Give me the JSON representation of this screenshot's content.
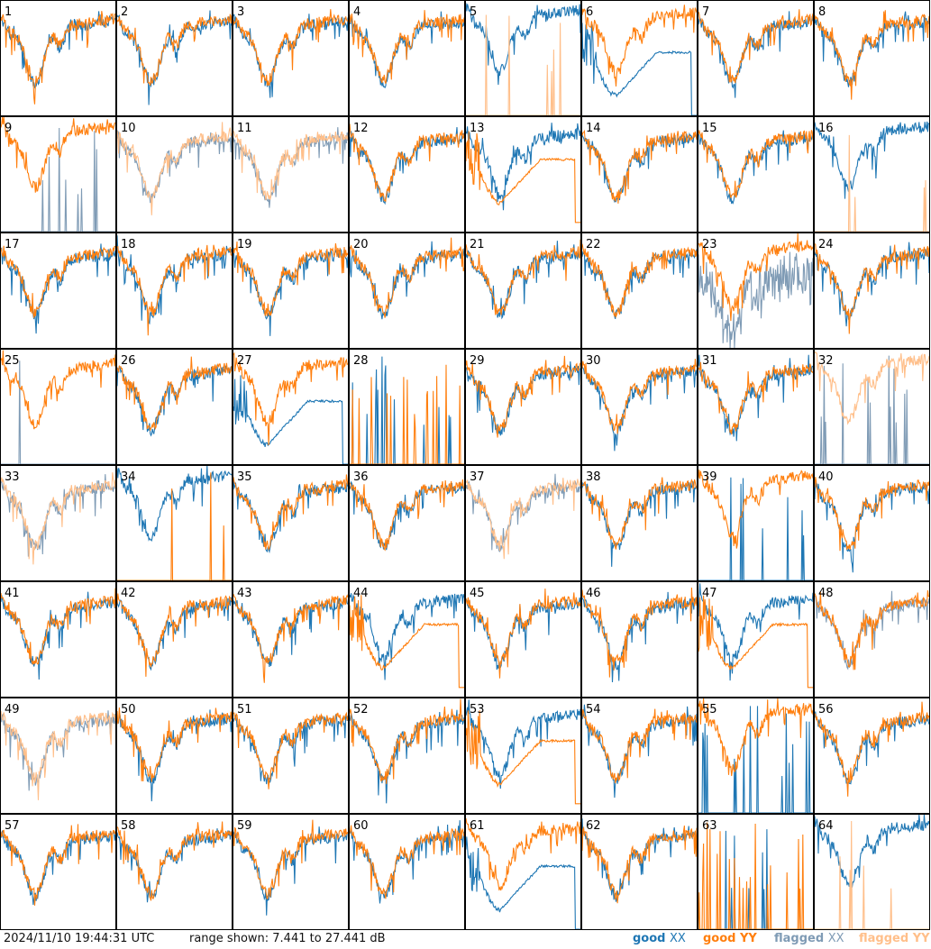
{
  "colors": {
    "good_xx": "#1f77b4",
    "good_yy": "#ff7f0e",
    "flagged_xx": "#7f9bb5",
    "flagged_yy": "#ffbf8a",
    "frame": "#000000"
  },
  "footer": {
    "timestamp": "2024/11/10 19:44:31 UTC",
    "range_text": "range shown: 7.441 to 27.441 dB",
    "legend": {
      "good_xx": {
        "word": "good",
        "pol": "XX"
      },
      "good_yy": {
        "word": "good",
        "pol": "YY"
      },
      "flagged_xx": {
        "word": "flagged",
        "pol": "XX"
      },
      "flagged_yy": {
        "word": "flagged",
        "pol": "YY"
      }
    }
  },
  "chart_data": {
    "type": "line",
    "layout": "8x8 small multiples",
    "y_range_db": [
      7.441,
      27.441
    ],
    "grid": false,
    "legend_placement": "bottom-right",
    "panels": [
      {
        "id": "1",
        "xx": "good",
        "yy": "good",
        "style": "normal"
      },
      {
        "id": "2",
        "xx": "good",
        "yy": "good",
        "style": "normal"
      },
      {
        "id": "3",
        "xx": "good",
        "yy": "good",
        "style": "normal"
      },
      {
        "id": "4",
        "xx": "good",
        "yy": "good",
        "style": "normal"
      },
      {
        "id": "5",
        "xx": "good",
        "yy": "flagged",
        "style": "yy_spikes"
      },
      {
        "id": "6",
        "xx": "good",
        "yy": "good",
        "style": "xx_weird"
      },
      {
        "id": "7",
        "xx": "good",
        "yy": "good",
        "style": "normal"
      },
      {
        "id": "8",
        "xx": "good",
        "yy": "good",
        "style": "normal"
      },
      {
        "id": "9",
        "xx": "flagged",
        "yy": "good",
        "style": "xx_spikes"
      },
      {
        "id": "10",
        "xx": "flagged",
        "yy": "flagged",
        "style": "normal"
      },
      {
        "id": "11",
        "xx": "flagged",
        "yy": "flagged",
        "style": "normal"
      },
      {
        "id": "12",
        "xx": "good",
        "yy": "good",
        "style": "normal"
      },
      {
        "id": "13",
        "xx": "good",
        "yy": "good",
        "style": "yy_weird"
      },
      {
        "id": "14",
        "xx": "good",
        "yy": "good",
        "style": "normal"
      },
      {
        "id": "15",
        "xx": "good",
        "yy": "good",
        "style": "normal"
      },
      {
        "id": "16",
        "xx": "good",
        "yy": "flagged",
        "style": "yy_spikes"
      },
      {
        "id": "17",
        "xx": "good",
        "yy": "good",
        "style": "normal"
      },
      {
        "id": "18",
        "xx": "good",
        "yy": "good",
        "style": "normal"
      },
      {
        "id": "19",
        "xx": "good",
        "yy": "good",
        "style": "normal"
      },
      {
        "id": "20",
        "xx": "good",
        "yy": "good",
        "style": "normal"
      },
      {
        "id": "21",
        "xx": "good",
        "yy": "good",
        "style": "normal"
      },
      {
        "id": "22",
        "xx": "good",
        "yy": "good",
        "style": "normal"
      },
      {
        "id": "23",
        "xx": "flagged",
        "yy": "good",
        "style": "xx_noisy"
      },
      {
        "id": "24",
        "xx": "good",
        "yy": "good",
        "style": "normal"
      },
      {
        "id": "25",
        "xx": "flagged",
        "yy": "good",
        "style": "xx_spikes_sparse"
      },
      {
        "id": "26",
        "xx": "good",
        "yy": "good",
        "style": "normal"
      },
      {
        "id": "27",
        "xx": "good",
        "yy": "good",
        "style": "xx_weird"
      },
      {
        "id": "28",
        "xx": "good",
        "yy": "good",
        "style": "both_spikes"
      },
      {
        "id": "29",
        "xx": "good",
        "yy": "good",
        "style": "normal"
      },
      {
        "id": "30",
        "xx": "good",
        "yy": "good",
        "style": "normal"
      },
      {
        "id": "31",
        "xx": "good",
        "yy": "good",
        "style": "normal"
      },
      {
        "id": "32",
        "xx": "flagged",
        "yy": "flagged",
        "style": "xx_spikes"
      },
      {
        "id": "33",
        "xx": "flagged",
        "yy": "flagged",
        "style": "normal"
      },
      {
        "id": "34",
        "xx": "good",
        "yy": "good",
        "style": "yy_spikes"
      },
      {
        "id": "35",
        "xx": "good",
        "yy": "good",
        "style": "normal"
      },
      {
        "id": "36",
        "xx": "good",
        "yy": "good",
        "style": "normal"
      },
      {
        "id": "37",
        "xx": "flagged",
        "yy": "flagged",
        "style": "normal"
      },
      {
        "id": "38",
        "xx": "good",
        "yy": "good",
        "style": "normal"
      },
      {
        "id": "39",
        "xx": "good",
        "yy": "good",
        "style": "xx_spikes"
      },
      {
        "id": "40",
        "xx": "good",
        "yy": "good",
        "style": "normal"
      },
      {
        "id": "41",
        "xx": "good",
        "yy": "good",
        "style": "normal"
      },
      {
        "id": "42",
        "xx": "good",
        "yy": "good",
        "style": "normal"
      },
      {
        "id": "43",
        "xx": "good",
        "yy": "good",
        "style": "normal"
      },
      {
        "id": "44",
        "xx": "good",
        "yy": "good",
        "style": "yy_weird"
      },
      {
        "id": "45",
        "xx": "good",
        "yy": "good",
        "style": "normal"
      },
      {
        "id": "46",
        "xx": "good",
        "yy": "good",
        "style": "normal"
      },
      {
        "id": "47",
        "xx": "good",
        "yy": "good",
        "style": "yy_weird"
      },
      {
        "id": "48",
        "xx": "flagged",
        "yy": "good",
        "style": "normal"
      },
      {
        "id": "49",
        "xx": "flagged",
        "yy": "flagged",
        "style": "normal"
      },
      {
        "id": "50",
        "xx": "good",
        "yy": "good",
        "style": "normal"
      },
      {
        "id": "51",
        "xx": "good",
        "yy": "good",
        "style": "normal"
      },
      {
        "id": "52",
        "xx": "good",
        "yy": "good",
        "style": "normal"
      },
      {
        "id": "53",
        "xx": "good",
        "yy": "good",
        "style": "yy_weird"
      },
      {
        "id": "54",
        "xx": "good",
        "yy": "good",
        "style": "normal"
      },
      {
        "id": "55",
        "xx": "good",
        "yy": "good",
        "style": "xx_spikes"
      },
      {
        "id": "56",
        "xx": "good",
        "yy": "good",
        "style": "normal"
      },
      {
        "id": "57",
        "xx": "good",
        "yy": "good",
        "style": "normal"
      },
      {
        "id": "58",
        "xx": "good",
        "yy": "good",
        "style": "normal"
      },
      {
        "id": "59",
        "xx": "good",
        "yy": "good",
        "style": "normal"
      },
      {
        "id": "60",
        "xx": "good",
        "yy": "good",
        "style": "normal"
      },
      {
        "id": "61",
        "xx": "good",
        "yy": "good",
        "style": "xx_weird"
      },
      {
        "id": "62",
        "xx": "good",
        "yy": "good",
        "style": "normal"
      },
      {
        "id": "63",
        "xx": "good",
        "yy": "good",
        "style": "both_spikes"
      },
      {
        "id": "64",
        "xx": "good",
        "yy": "flagged",
        "style": "yy_spikes"
      }
    ]
  }
}
